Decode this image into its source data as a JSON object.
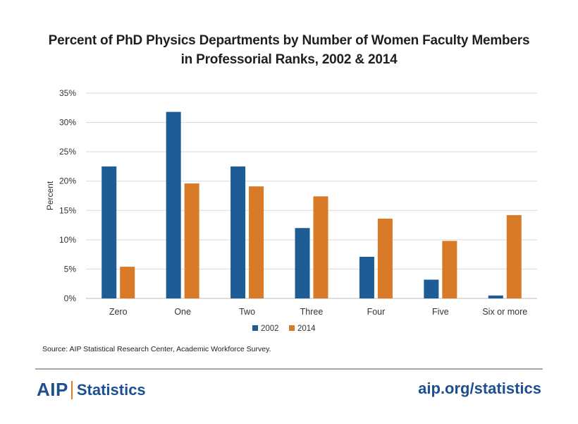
{
  "header": {
    "title_line1": "Percent of PhD Physics Departments by Number of Women Faculty Members",
    "title_line2": "in Professorial Ranks, 2002 & 2014"
  },
  "chart_data": {
    "type": "bar",
    "title": "Percent of PhD Physics Departments by Number of Women Faculty Members in Professorial Ranks, 2002 & 2014",
    "xlabel": "",
    "ylabel": "Percent",
    "ylim": [
      0,
      35
    ],
    "yticks": [
      "0%",
      "5%",
      "10%",
      "15%",
      "20%",
      "25%",
      "30%",
      "35%"
    ],
    "categories": [
      "Zero",
      "One",
      "Two",
      "Three",
      "Four",
      "Five",
      "Six or more"
    ],
    "series": [
      {
        "name": "2002",
        "color": "#1e5c96",
        "values": [
          22.5,
          31.8,
          22.5,
          12.0,
          7.1,
          3.2,
          0.5
        ]
      },
      {
        "name": "2014",
        "color": "#d97a29",
        "values": [
          5.4,
          19.6,
          19.1,
          17.4,
          13.6,
          9.8,
          14.2
        ]
      }
    ],
    "grid": true,
    "legend": "bottom-center"
  },
  "footer": {
    "source": "Source: AIP Statistical Research Center, Academic Workforce Survey.",
    "brand_aip": "AIP",
    "brand_statistics": "Statistics",
    "url": "aip.org/statistics"
  }
}
